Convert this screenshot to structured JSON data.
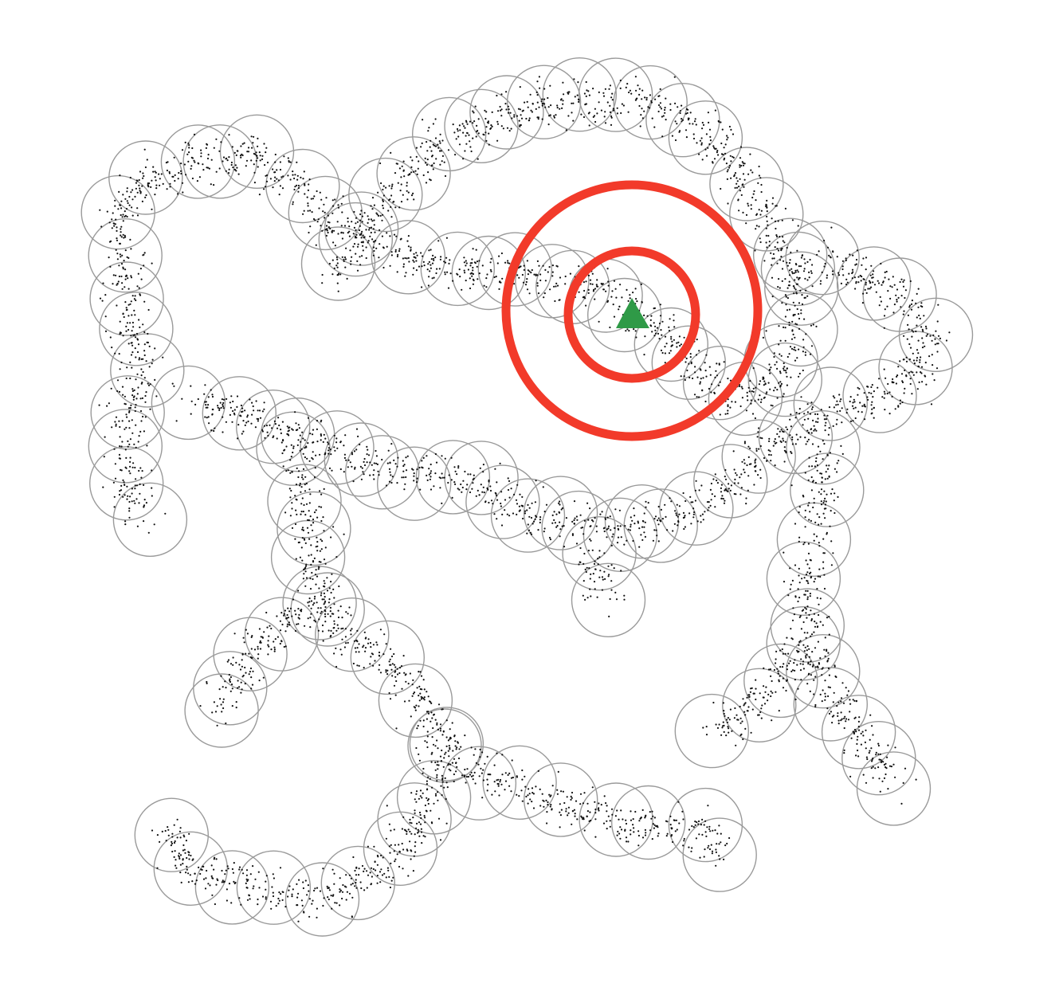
{
  "figure": {
    "description_free": true,
    "colors": {
      "background": "#ffffff",
      "cover_circle_stroke": "#9a9a9a",
      "point_fill": "#111111",
      "highlight_ring": "#f23a2a",
      "marker_fill": "#2f9a47"
    },
    "icons": {
      "marker": "triangle-marker-icon"
    }
  }
}
